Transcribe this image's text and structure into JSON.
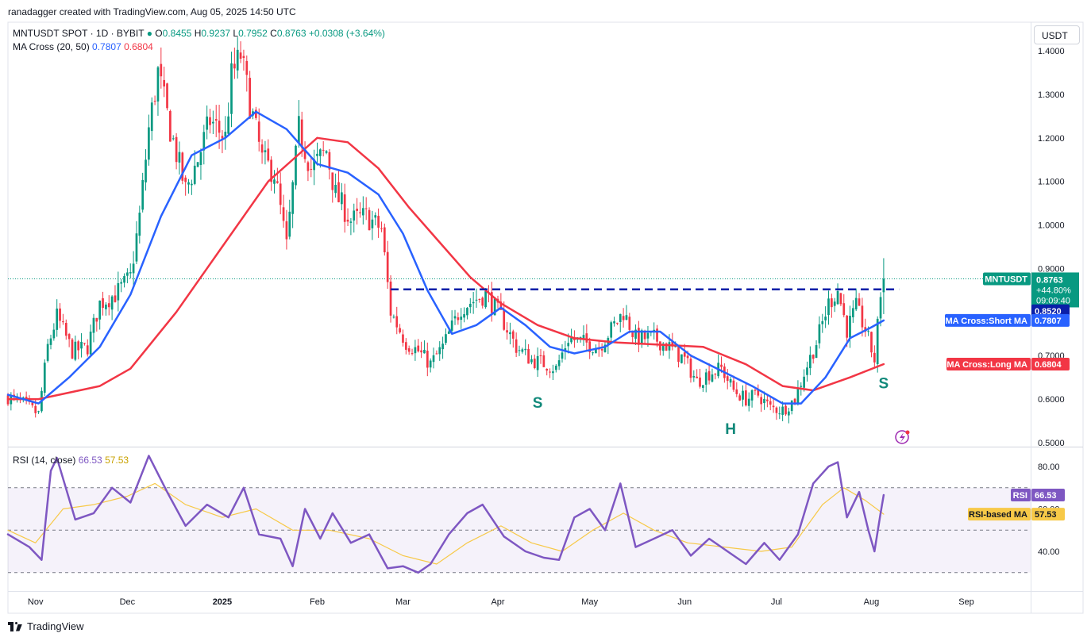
{
  "header": {
    "credit": "ranadagger created with TradingView.com, Aug 05, 2025 14:50 UTC",
    "symbol": "MNTUSDT SPOT · 1D · BYBIT",
    "o_label": "O",
    "o_value": "0.8455",
    "h_label": "H",
    "h_value": "0.9237",
    "l_label": "L",
    "l_value": "0.7952",
    "c_label": "C",
    "c_value": "0.8763",
    "change": "+0.0308 (+3.64%)",
    "ma_label": "MA Cross (20, 50)",
    "ma_short_value": "0.7807",
    "ma_long_value": "0.6804",
    "rsi_label": "RSI (14, close)",
    "rsi_value": "66.53",
    "rsi_ma_value": "57.53"
  },
  "currency_button": "USDT",
  "footer": {
    "brand": "TradingView"
  },
  "colors": {
    "up": "#089981",
    "down": "#f23645",
    "ma_short": "#2962ff",
    "ma_long": "#f23645",
    "rsi": "#7e57c2",
    "rsi_ma": "#f7c948",
    "level": "#0a1fa8",
    "annot": "#11897a"
  },
  "chart_data": [
    {
      "type": "candlestick",
      "title": "MNTUSDT SPOT · 1D · BYBIT",
      "x_range": [
        "2024-10-23",
        "2025-09-22"
      ],
      "ylim": [
        0.5,
        1.45
      ],
      "y_ticks": [
        "1.4000",
        "1.3000",
        "1.2000",
        "1.1000",
        "1.0000",
        "0.9000",
        "0.7000",
        "0.6000",
        "0.5000"
      ],
      "x_tick_labels": [
        "Nov",
        "Dec",
        "2025",
        "Feb",
        "Mar",
        "Apr",
        "May",
        "Jun",
        "Jul",
        "Aug",
        "Sep"
      ],
      "x_tick_dates": [
        "2024-11-01",
        "2024-12-01",
        "2025-01-01",
        "2025-02-01",
        "2025-03-01",
        "2025-04-01",
        "2025-05-01",
        "2025-06-01",
        "2025-07-01",
        "2025-08-01",
        "2025-09-01"
      ],
      "close_path": [
        [
          "2024-10-23",
          0.605
        ],
        [
          "2024-10-28",
          0.59
        ],
        [
          "2024-11-02",
          0.565
        ],
        [
          "2024-11-05",
          0.72
        ],
        [
          "2024-11-08",
          0.79
        ],
        [
          "2024-11-13",
          0.71
        ],
        [
          "2024-11-18",
          0.72
        ],
        [
          "2024-11-22",
          0.82
        ],
        [
          "2024-11-27",
          0.84
        ],
        [
          "2024-12-02",
          0.88
        ],
        [
          "2024-12-05",
          1.02
        ],
        [
          "2024-12-08",
          1.22
        ],
        [
          "2024-12-11",
          1.35
        ],
        [
          "2024-12-15",
          1.22
        ],
        [
          "2024-12-20",
          1.08
        ],
        [
          "2024-12-24",
          1.15
        ],
        [
          "2024-12-28",
          1.24
        ],
        [
          "2025-01-02",
          1.2
        ],
        [
          "2025-01-04",
          1.34
        ],
        [
          "2025-01-07",
          1.39
        ],
        [
          "2025-01-10",
          1.28
        ],
        [
          "2025-01-14",
          1.15
        ],
        [
          "2025-01-18",
          1.12
        ],
        [
          "2025-01-22",
          0.95
        ],
        [
          "2025-01-26",
          1.22
        ],
        [
          "2025-01-30",
          1.13
        ],
        [
          "2025-02-04",
          1.17
        ],
        [
          "2025-02-07",
          1.07
        ],
        [
          "2025-02-12",
          1.01
        ],
        [
          "2025-02-17",
          1.02
        ],
        [
          "2025-02-22",
          0.99
        ],
        [
          "2025-02-25",
          0.8
        ],
        [
          "2025-03-02",
          0.73
        ],
        [
          "2025-03-06",
          0.71
        ],
        [
          "2025-03-10",
          0.68
        ],
        [
          "2025-03-14",
          0.72
        ],
        [
          "2025-03-20",
          0.81
        ],
        [
          "2025-03-25",
          0.83
        ],
        [
          "2025-03-28",
          0.84
        ],
        [
          "2025-04-02",
          0.79
        ],
        [
          "2025-04-07",
          0.72
        ],
        [
          "2025-04-12",
          0.69
        ],
        [
          "2025-04-17",
          0.68
        ],
        [
          "2025-04-20",
          0.67
        ],
        [
          "2025-04-24",
          0.74
        ],
        [
          "2025-04-29",
          0.73
        ],
        [
          "2025-05-04",
          0.72
        ],
        [
          "2025-05-08",
          0.76
        ],
        [
          "2025-05-12",
          0.8
        ],
        [
          "2025-05-16",
          0.74
        ],
        [
          "2025-05-22",
          0.74
        ],
        [
          "2025-05-27",
          0.72
        ],
        [
          "2025-06-01",
          0.69
        ],
        [
          "2025-06-05",
          0.64
        ],
        [
          "2025-06-09",
          0.66
        ],
        [
          "2025-06-13",
          0.67
        ],
        [
          "2025-06-17",
          0.62
        ],
        [
          "2025-06-21",
          0.6
        ],
        [
          "2025-06-25",
          0.61
        ],
        [
          "2025-06-29",
          0.58
        ],
        [
          "2025-07-03",
          0.575
        ],
        [
          "2025-07-07",
          0.6
        ],
        [
          "2025-07-10",
          0.66
        ],
        [
          "2025-07-14",
          0.73
        ],
        [
          "2025-07-18",
          0.82
        ],
        [
          "2025-07-21",
          0.85
        ],
        [
          "2025-07-24",
          0.76
        ],
        [
          "2025-07-27",
          0.81
        ],
        [
          "2025-07-30",
          0.76
        ],
        [
          "2025-08-02",
          0.69
        ],
        [
          "2025-08-04",
          0.8455
        ],
        [
          "2025-08-05",
          0.8763
        ]
      ],
      "last_candle": {
        "date": "2025-08-05",
        "open": 0.8455,
        "high": 0.9237,
        "low": 0.7952,
        "close": 0.8763
      },
      "series": [
        {
          "name": "MA Cross:Short MA",
          "points": [
            [
              "2024-10-23",
              0.61
            ],
            [
              "2024-11-02",
              0.59
            ],
            [
              "2024-11-12",
              0.65
            ],
            [
              "2024-11-22",
              0.72
            ],
            [
              "2024-12-02",
              0.84
            ],
            [
              "2024-12-12",
              1.02
            ],
            [
              "2024-12-22",
              1.16
            ],
            [
              "2025-01-02",
              1.2
            ],
            [
              "2025-01-12",
              1.26
            ],
            [
              "2025-01-22",
              1.22
            ],
            [
              "2025-02-01",
              1.14
            ],
            [
              "2025-02-11",
              1.12
            ],
            [
              "2025-02-21",
              1.07
            ],
            [
              "2025-03-01",
              0.98
            ],
            [
              "2025-03-09",
              0.85
            ],
            [
              "2025-03-17",
              0.75
            ],
            [
              "2025-03-25",
              0.77
            ],
            [
              "2025-04-02",
              0.81
            ],
            [
              "2025-04-10",
              0.77
            ],
            [
              "2025-04-18",
              0.72
            ],
            [
              "2025-04-26",
              0.705
            ],
            [
              "2025-05-06",
              0.72
            ],
            [
              "2025-05-14",
              0.755
            ],
            [
              "2025-05-24",
              0.755
            ],
            [
              "2025-06-03",
              0.7
            ],
            [
              "2025-06-13",
              0.665
            ],
            [
              "2025-06-23",
              0.63
            ],
            [
              "2025-07-03",
              0.59
            ],
            [
              "2025-07-09",
              0.59
            ],
            [
              "2025-07-17",
              0.65
            ],
            [
              "2025-07-25",
              0.74
            ],
            [
              "2025-08-01",
              0.765
            ],
            [
              "2025-08-05",
              0.7807
            ]
          ]
        },
        {
          "name": "MA Cross:Long MA",
          "points": [
            [
              "2024-10-23",
              0.6
            ],
            [
              "2024-11-02",
              0.6
            ],
            [
              "2024-11-22",
              0.63
            ],
            [
              "2024-12-02",
              0.67
            ],
            [
              "2024-12-17",
              0.8
            ],
            [
              "2025-01-01",
              0.95
            ],
            [
              "2025-01-16",
              1.1
            ],
            [
              "2025-02-01",
              1.2
            ],
            [
              "2025-02-11",
              1.19
            ],
            [
              "2025-02-21",
              1.13
            ],
            [
              "2025-03-03",
              1.04
            ],
            [
              "2025-03-13",
              0.96
            ],
            [
              "2025-03-23",
              0.88
            ],
            [
              "2025-04-02",
              0.82
            ],
            [
              "2025-04-14",
              0.77
            ],
            [
              "2025-04-26",
              0.74
            ],
            [
              "2025-05-10",
              0.73
            ],
            [
              "2025-05-24",
              0.725
            ],
            [
              "2025-06-07",
              0.72
            ],
            [
              "2025-06-21",
              0.68
            ],
            [
              "2025-07-03",
              0.63
            ],
            [
              "2025-07-13",
              0.62
            ],
            [
              "2025-07-25",
              0.65
            ],
            [
              "2025-08-05",
              0.6804
            ]
          ]
        }
      ],
      "level": {
        "value": 0.852,
        "from": "2025-02-25",
        "to": "2025-08-10"
      },
      "annotations": [
        {
          "text": "S",
          "date": "2025-04-14",
          "price": 0.58
        },
        {
          "text": "H",
          "date": "2025-06-16",
          "price": 0.52
        },
        {
          "text": "S",
          "date": "2025-08-05",
          "price": 0.625
        }
      ],
      "price_labels": [
        {
          "line1": "MNTUSDT",
          "value": "0.8763",
          "sub1": "+44.80%",
          "sub2": "09:09:40"
        },
        {
          "line1": "",
          "value": "0.8520"
        },
        {
          "line1": "MA Cross:Short MA",
          "value": "0.7807"
        },
        {
          "line1": "MA Cross:Long MA",
          "value": "0.6804"
        }
      ]
    },
    {
      "type": "line",
      "title": "RSI (14, close)",
      "ylim": [
        25,
        88
      ],
      "y_ticks": [
        "80.00",
        "60.00",
        "40.00"
      ],
      "bands": {
        "upper": 70,
        "middle": 50,
        "lower": 30
      },
      "series": [
        {
          "name": "RSI",
          "points": [
            [
              "2024-10-23",
              48
            ],
            [
              "2024-10-30",
              42
            ],
            [
              "2024-11-03",
              36
            ],
            [
              "2024-11-06",
              78
            ],
            [
              "2024-11-08",
              84
            ],
            [
              "2024-11-14",
              55
            ],
            [
              "2024-11-20",
              58
            ],
            [
              "2024-11-26",
              70
            ],
            [
              "2024-12-02",
              63
            ],
            [
              "2024-12-08",
              85
            ],
            [
              "2024-12-14",
              68
            ],
            [
              "2024-12-20",
              52
            ],
            [
              "2024-12-27",
              62
            ],
            [
              "2025-01-03",
              56
            ],
            [
              "2025-01-08",
              70
            ],
            [
              "2025-01-13",
              48
            ],
            [
              "2025-01-20",
              46
            ],
            [
              "2025-01-24",
              33
            ],
            [
              "2025-01-28",
              60
            ],
            [
              "2025-02-02",
              46
            ],
            [
              "2025-02-06",
              58
            ],
            [
              "2025-02-12",
              44
            ],
            [
              "2025-02-18",
              48
            ],
            [
              "2025-02-24",
              32
            ],
            [
              "2025-03-01",
              33
            ],
            [
              "2025-03-06",
              30
            ],
            [
              "2025-03-10",
              34
            ],
            [
              "2025-03-16",
              48
            ],
            [
              "2025-03-22",
              58
            ],
            [
              "2025-03-27",
              62
            ],
            [
              "2025-04-03",
              47
            ],
            [
              "2025-04-10",
              40
            ],
            [
              "2025-04-16",
              37
            ],
            [
              "2025-04-21",
              36
            ],
            [
              "2025-04-26",
              56
            ],
            [
              "2025-05-01",
              60
            ],
            [
              "2025-05-06",
              50
            ],
            [
              "2025-05-11",
              72
            ],
            [
              "2025-05-16",
              42
            ],
            [
              "2025-05-22",
              46
            ],
            [
              "2025-05-28",
              50
            ],
            [
              "2025-06-03",
              38
            ],
            [
              "2025-06-09",
              46
            ],
            [
              "2025-06-15",
              40
            ],
            [
              "2025-06-21",
              34
            ],
            [
              "2025-06-27",
              44
            ],
            [
              "2025-07-02",
              36
            ],
            [
              "2025-07-08",
              48
            ],
            [
              "2025-07-13",
              72
            ],
            [
              "2025-07-18",
              80
            ],
            [
              "2025-07-21",
              82
            ],
            [
              "2025-07-24",
              56
            ],
            [
              "2025-07-28",
              68
            ],
            [
              "2025-07-31",
              50
            ],
            [
              "2025-08-02",
              40
            ],
            [
              "2025-08-04",
              58
            ],
            [
              "2025-08-05",
              66.53
            ]
          ]
        },
        {
          "name": "RSI-based MA",
          "points": [
            [
              "2024-10-23",
              50
            ],
            [
              "2024-11-01",
              44
            ],
            [
              "2024-11-10",
              60
            ],
            [
              "2024-11-20",
              62
            ],
            [
              "2024-12-01",
              66
            ],
            [
              "2024-12-10",
              72
            ],
            [
              "2024-12-20",
              62
            ],
            [
              "2025-01-01",
              56
            ],
            [
              "2025-01-12",
              60
            ],
            [
              "2025-01-24",
              50
            ],
            [
              "2025-02-05",
              50
            ],
            [
              "2025-02-18",
              46
            ],
            [
              "2025-03-01",
              38
            ],
            [
              "2025-03-12",
              34
            ],
            [
              "2025-03-22",
              44
            ],
            [
              "2025-04-02",
              52
            ],
            [
              "2025-04-12",
              44
            ],
            [
              "2025-04-22",
              40
            ],
            [
              "2025-05-02",
              50
            ],
            [
              "2025-05-12",
              58
            ],
            [
              "2025-05-22",
              50
            ],
            [
              "2025-06-02",
              44
            ],
            [
              "2025-06-14",
              42
            ],
            [
              "2025-06-26",
              40
            ],
            [
              "2025-07-06",
              42
            ],
            [
              "2025-07-16",
              62
            ],
            [
              "2025-07-23",
              70
            ],
            [
              "2025-07-30",
              64
            ],
            [
              "2025-08-05",
              57.53
            ]
          ]
        }
      ],
      "price_labels": [
        {
          "line1": "RSI",
          "value": "66.53"
        },
        {
          "line1": "RSI-based MA",
          "value": "57.53"
        }
      ]
    }
  ]
}
